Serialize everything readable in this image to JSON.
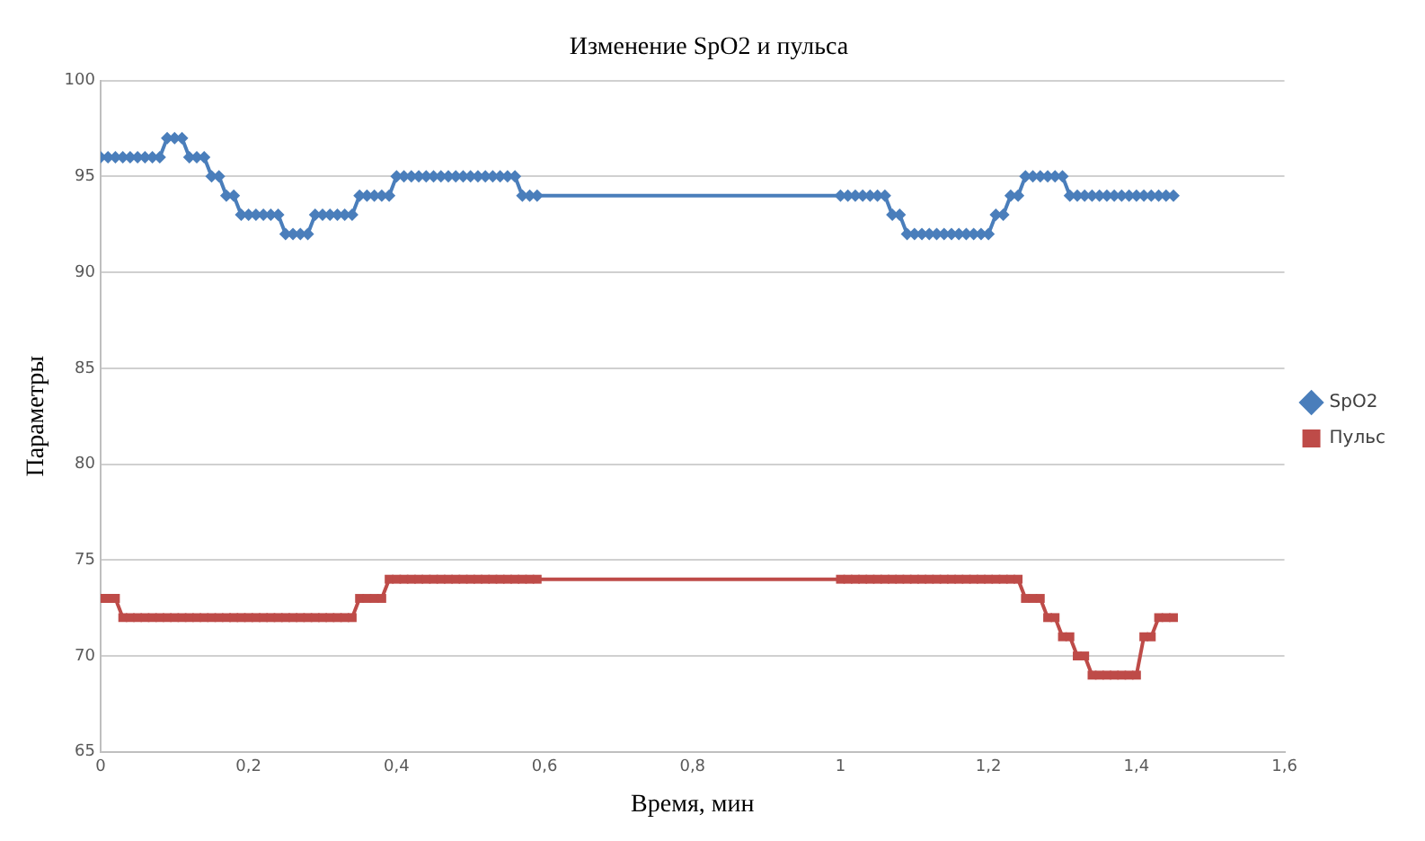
{
  "chart_data": {
    "type": "line",
    "title": "Изменение SpO2 и пульса",
    "xlabel": "Время, мин",
    "ylabel": "Параметры",
    "x": [
      0,
      0.01,
      0.02,
      0.03,
      0.04,
      0.05,
      0.06,
      0.07,
      0.08,
      0.09,
      0.1,
      0.11,
      0.12,
      0.13,
      0.14,
      0.15,
      0.16,
      0.17,
      0.18,
      0.19,
      0.2,
      0.21,
      0.22,
      0.23,
      0.24,
      0.25,
      0.26,
      0.27,
      0.28,
      0.29,
      0.3,
      0.31,
      0.32,
      0.33,
      0.34,
      0.35,
      0.36,
      0.37,
      0.38,
      0.39,
      0.4,
      0.41,
      0.42,
      0.43,
      0.44,
      0.45,
      0.46,
      0.47,
      0.48,
      0.49,
      0.5,
      0.51,
      0.52,
      0.53,
      0.54,
      0.55,
      0.56,
      0.57,
      0.58,
      0.59,
      1,
      1.01,
      1.02,
      1.03,
      1.04,
      1.05,
      1.06,
      1.07,
      1.08,
      1.09,
      1.1,
      1.11,
      1.12,
      1.13,
      1.14,
      1.15,
      1.16,
      1.17,
      1.18,
      1.19,
      1.2,
      1.21,
      1.22,
      1.23,
      1.24,
      1.25,
      1.26,
      1.27,
      1.28,
      1.29,
      1.3,
      1.31,
      1.32,
      1.33,
      1.34,
      1.35,
      1.36,
      1.37,
      1.38,
      1.39,
      1.4,
      1.41,
      1.42,
      1.43,
      1.44,
      1.45
    ],
    "series": [
      {
        "name": "SpO2",
        "color": "#4a7ebb",
        "marker": "diamond",
        "values": [
          96,
          96,
          96,
          96,
          96,
          96,
          96,
          96,
          96,
          97,
          97,
          97,
          96,
          96,
          96,
          95,
          95,
          94,
          94,
          93,
          93,
          93,
          93,
          93,
          93,
          92,
          92,
          92,
          92,
          93,
          93,
          93,
          93,
          93,
          93,
          94,
          94,
          94,
          94,
          94,
          95,
          95,
          95,
          95,
          95,
          95,
          95,
          95,
          95,
          95,
          95,
          95,
          95,
          95,
          95,
          95,
          95,
          94,
          94,
          94,
          94,
          94,
          94,
          94,
          94,
          94,
          94,
          93,
          93,
          92,
          92,
          92,
          92,
          92,
          92,
          92,
          92,
          92,
          92,
          92,
          92,
          93,
          93,
          94,
          94,
          95,
          95,
          95,
          95,
          95,
          95,
          94,
          94,
          94,
          94,
          94,
          94,
          94,
          94,
          94,
          94,
          94,
          94,
          94,
          94,
          94
        ]
      },
      {
        "name": "Пульс",
        "color": "#be4b48",
        "marker": "square",
        "values": [
          73,
          73,
          73,
          72,
          72,
          72,
          72,
          72,
          72,
          72,
          72,
          72,
          72,
          72,
          72,
          72,
          72,
          72,
          72,
          72,
          72,
          72,
          72,
          72,
          72,
          72,
          72,
          72,
          72,
          72,
          72,
          72,
          72,
          72,
          72,
          73,
          73,
          73,
          73,
          74,
          74,
          74,
          74,
          74,
          74,
          74,
          74,
          74,
          74,
          74,
          74,
          74,
          74,
          74,
          74,
          74,
          74,
          74,
          74,
          74,
          74,
          74,
          74,
          74,
          74,
          74,
          74,
          74,
          74,
          74,
          74,
          74,
          74,
          74,
          74,
          74,
          74,
          74,
          74,
          74,
          74,
          74,
          74,
          74,
          74,
          73,
          73,
          73,
          72,
          72,
          71,
          71,
          70,
          70,
          69,
          69,
          69,
          69,
          69,
          69,
          69,
          71,
          71,
          72,
          72,
          72
        ]
      }
    ],
    "xlim": [
      0,
      1.6
    ],
    "xticks": [
      0,
      {
        "value": 0.2,
        "label": "0,2"
      },
      {
        "value": 0.4,
        "label": "0,4"
      },
      {
        "value": 0.6,
        "label": "0,6"
      },
      {
        "value": 0.8,
        "label": "0,8"
      },
      1,
      {
        "value": 1.2,
        "label": "1,2"
      },
      {
        "value": 1.4,
        "label": "1,4"
      },
      {
        "value": 1.6,
        "label": "1,6"
      }
    ],
    "ylim": [
      65,
      100
    ],
    "yticks": [
      65,
      70,
      75,
      80,
      85,
      90,
      95,
      100
    ],
    "grid": "y",
    "legend": "right",
    "line_style": "solid"
  }
}
